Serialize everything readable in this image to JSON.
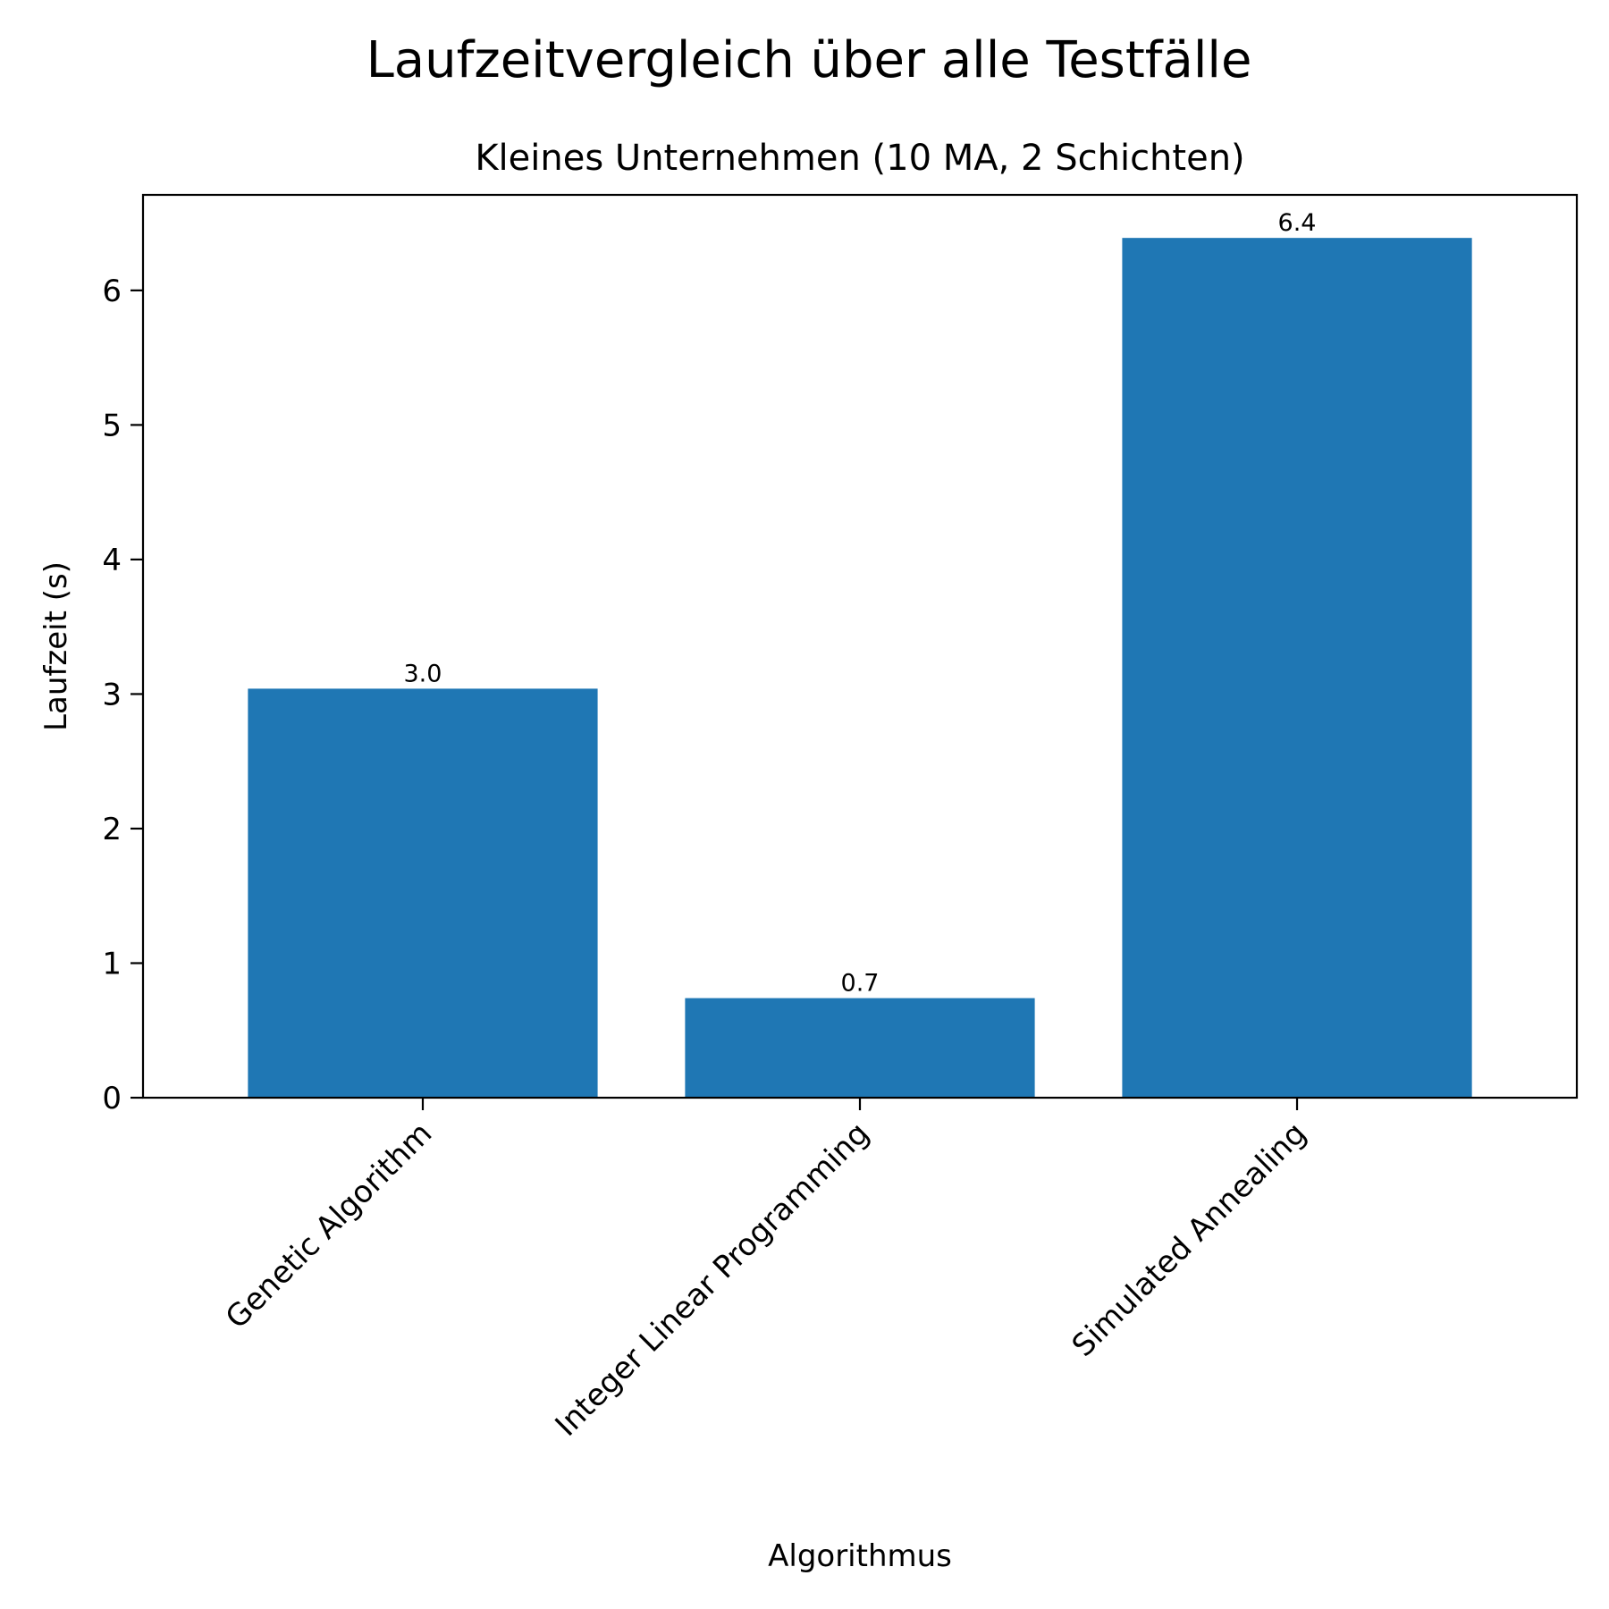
{
  "figure": {
    "suptitle": "Laufzeitvergleich über alle Testfälle"
  },
  "chart_data": {
    "type": "bar",
    "title": "Kleines Unternehmen (10 MA, 2 Schichten)",
    "xlabel": "Algorithmus",
    "ylabel": "Laufzeit (s)",
    "categories": [
      "Genetic Algorithm",
      "Integer Linear Programming",
      "Simulated Annealing"
    ],
    "values": [
      3.04,
      0.74,
      6.39
    ],
    "value_labels": [
      "3.0",
      "0.7",
      "6.4"
    ],
    "ylim": [
      0,
      6.71
    ],
    "yticks": [
      0,
      1,
      2,
      3,
      4,
      5,
      6
    ],
    "ytick_labels": [
      "0",
      "1",
      "2",
      "3",
      "4",
      "5",
      "6"
    ],
    "bar_color": "#1f77b4",
    "grid": false,
    "legend": "none",
    "xtick_rotation": -45
  }
}
